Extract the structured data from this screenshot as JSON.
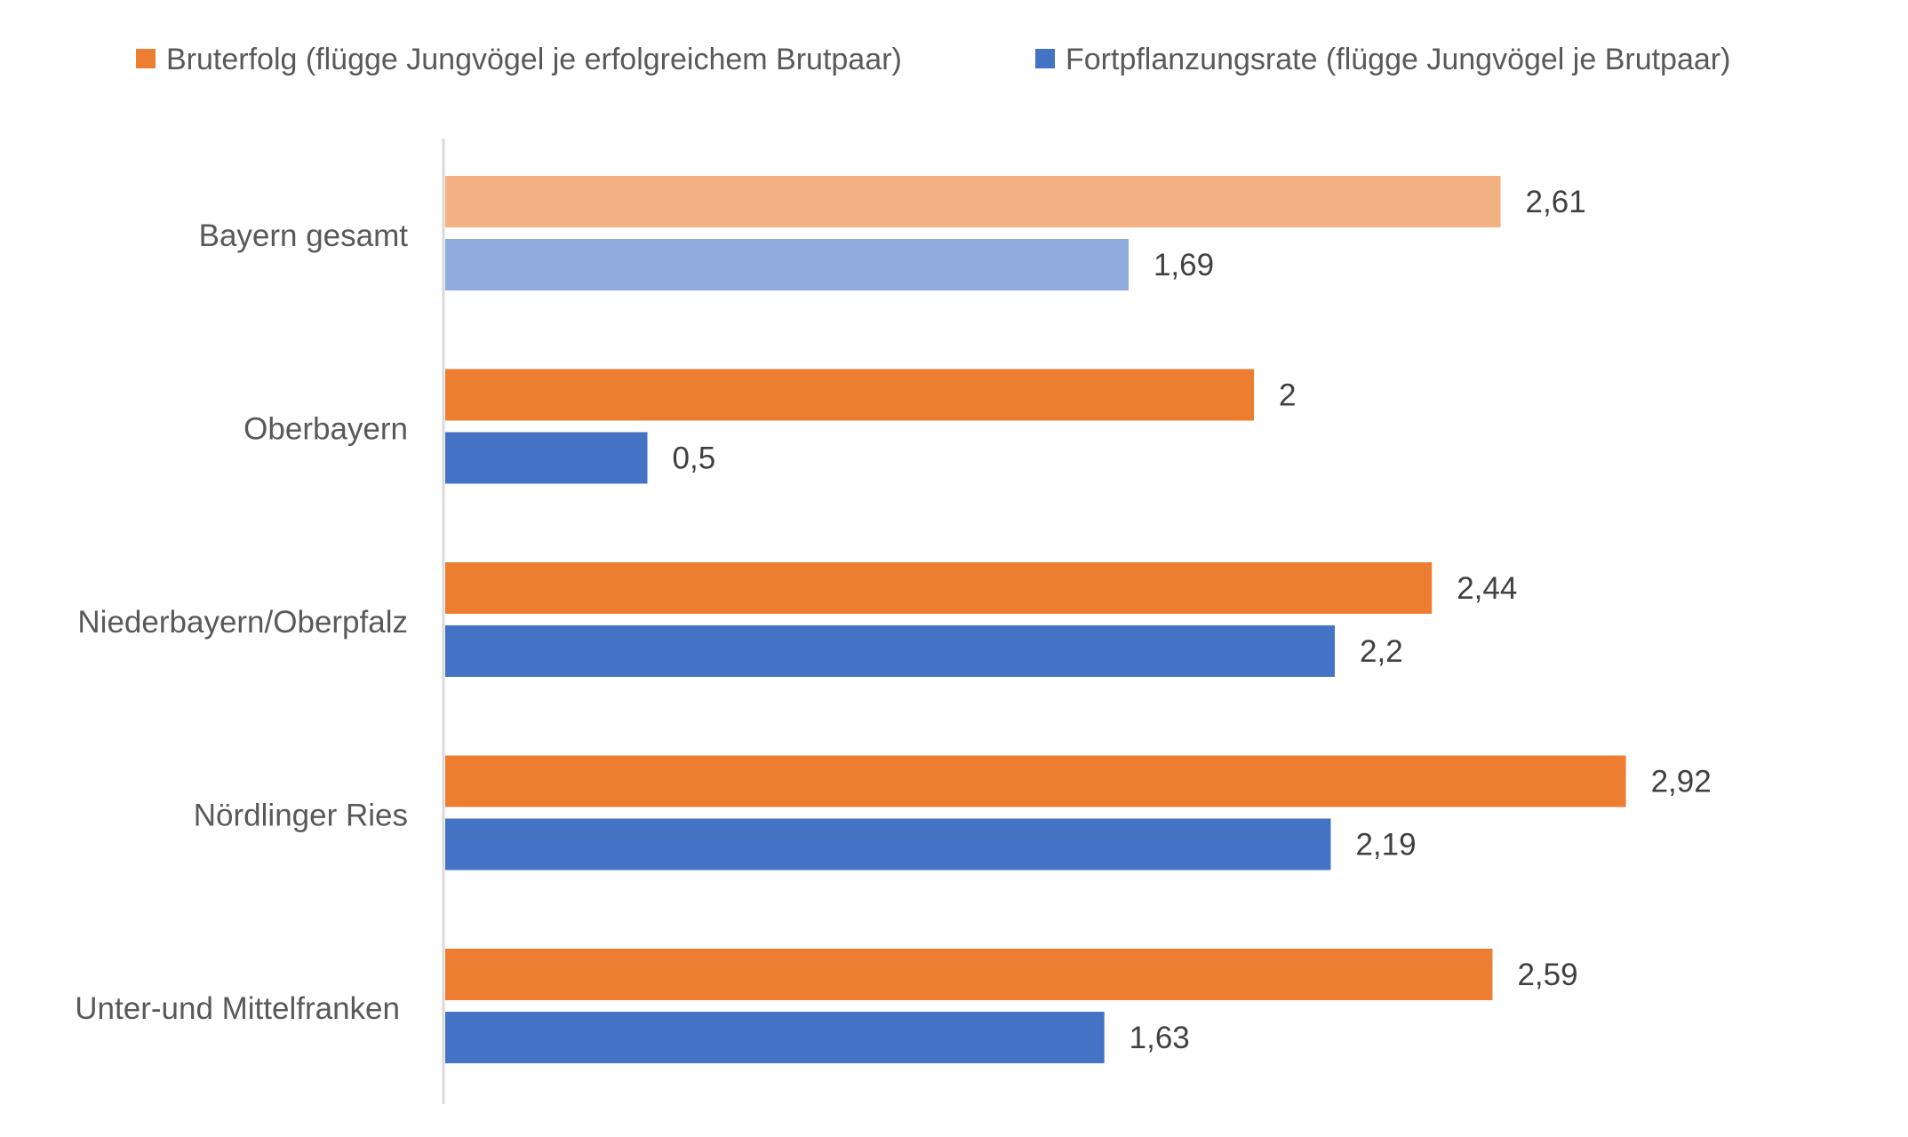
{
  "chart_data": {
    "type": "bar",
    "orientation": "horizontal",
    "title": "",
    "xlabel": "",
    "ylabel": "",
    "xlim": [
      0,
      3.2
    ],
    "grid": false,
    "legend_position": "top",
    "categories": [
      "Bayern gesamt",
      "Oberbayern",
      "Niederbayern/Oberpfalz",
      "Nördlinger Ries",
      "Unter-und Mittelfranken"
    ],
    "series": [
      {
        "name": "Bruterfolg (flügge Jungvögel je erfolgreichem Brutpaar)",
        "color": "#ED7D31",
        "highlight_color": "#F4B183",
        "values": [
          2.61,
          2,
          2.44,
          2.92,
          2.59
        ],
        "labels": [
          "2,61",
          "2",
          "2,44",
          "2,92",
          "2,59"
        ]
      },
      {
        "name": "Fortpflanzungsrate (flügge Jungvögel je Brutpaar)",
        "color": "#4472C4",
        "highlight_color": "#8FAADC",
        "values": [
          1.69,
          0.5,
          2.2,
          2.19,
          1.63
        ],
        "labels": [
          "1,69",
          "0,5",
          "2,2",
          "2,19",
          "1,63"
        ]
      }
    ],
    "highlighted_category_index": 0
  }
}
